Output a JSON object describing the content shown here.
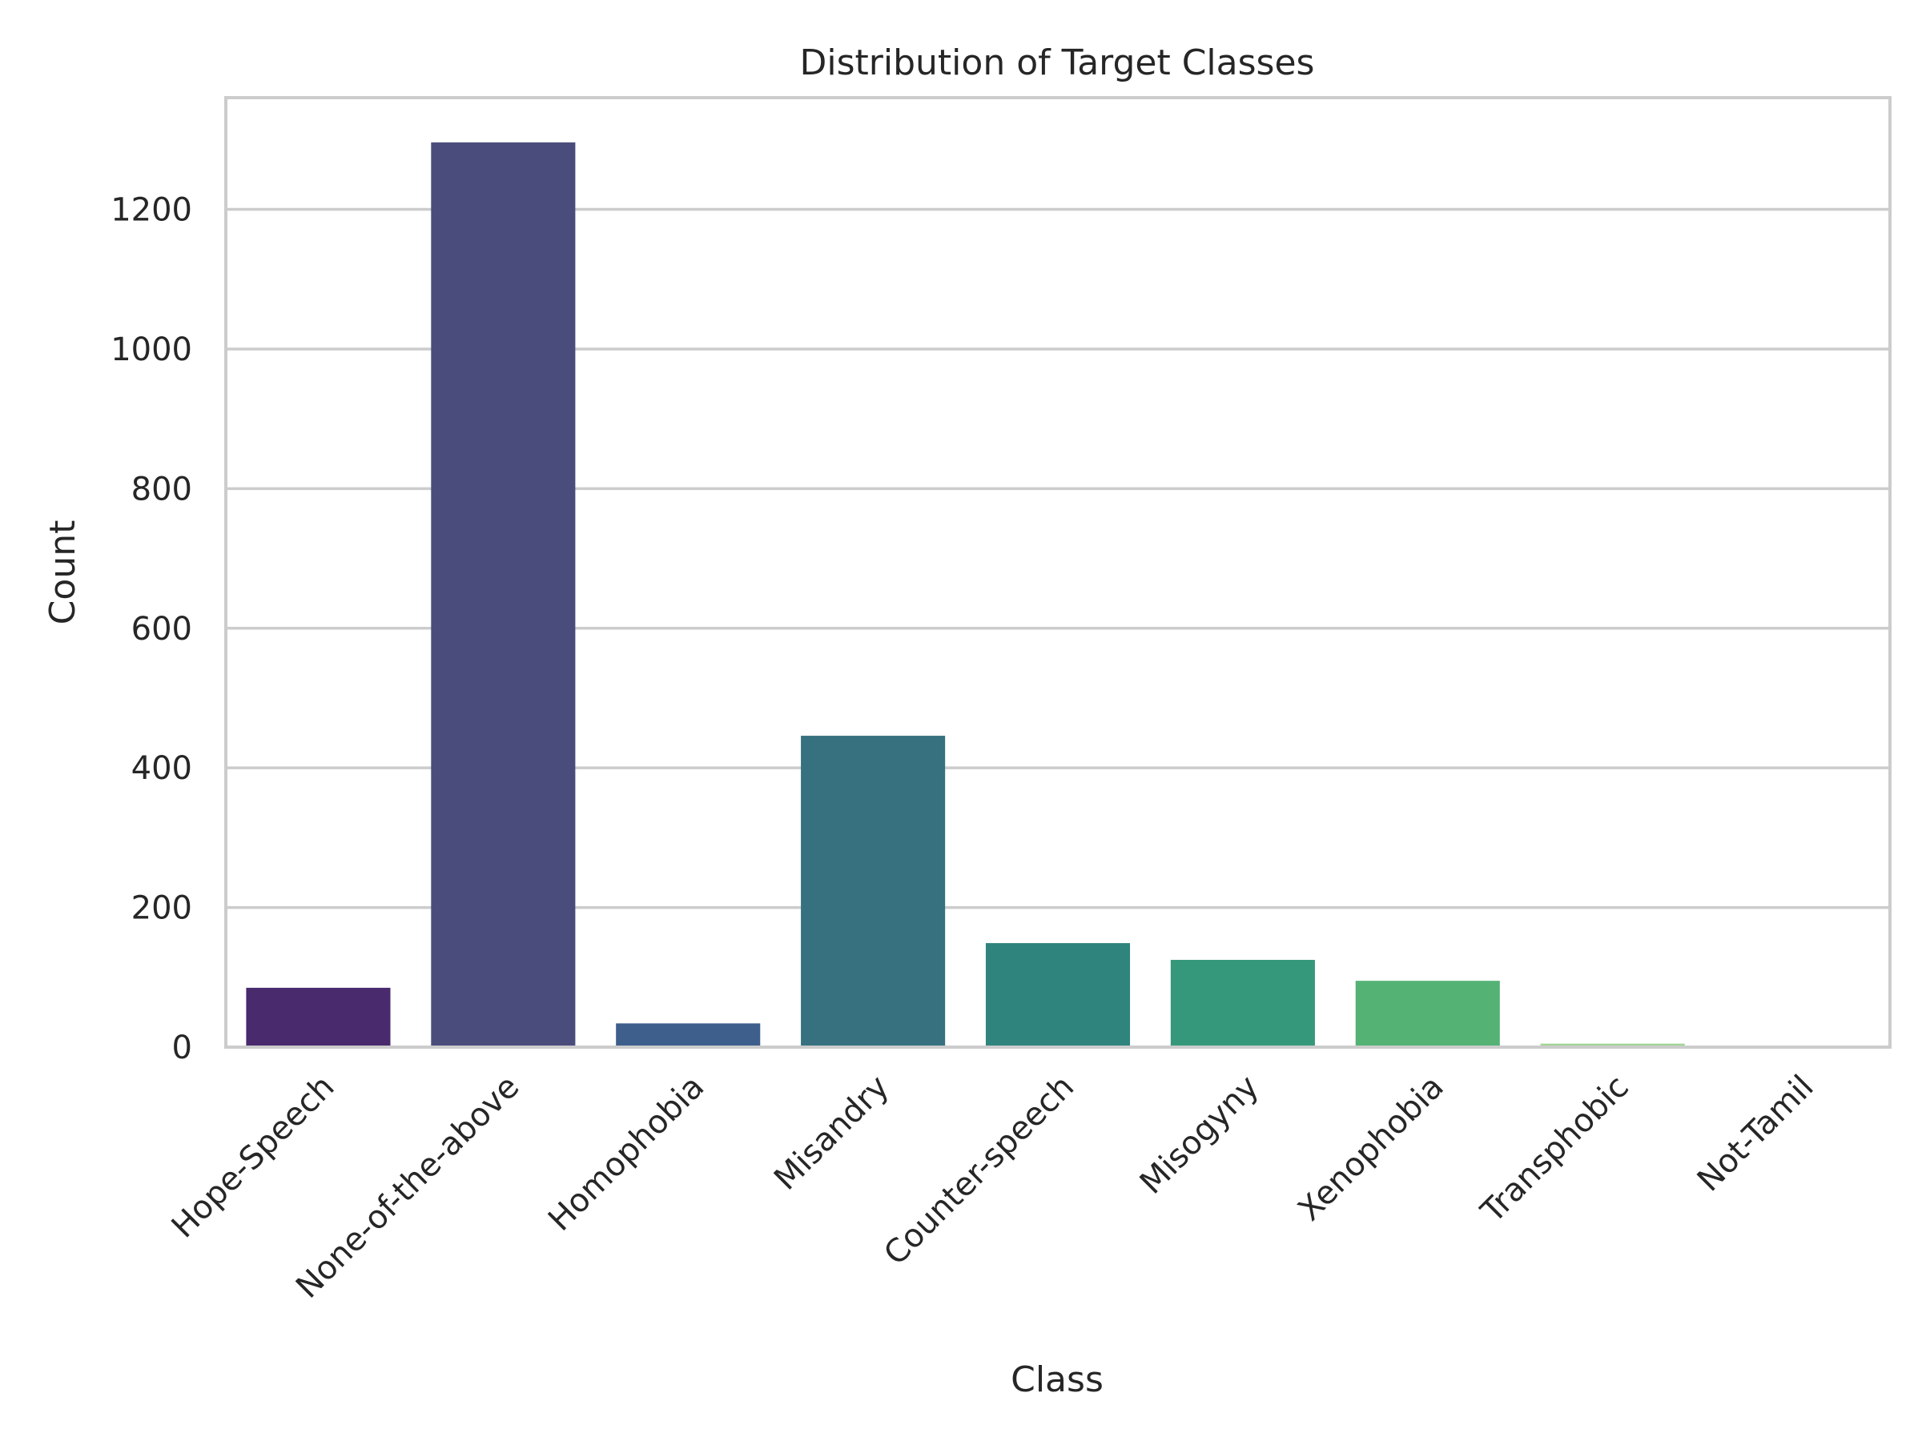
{
  "chart_data": {
    "type": "bar",
    "title": "Distribution of Target Classes",
    "xlabel": "Class",
    "ylabel": "Count",
    "categories": [
      "Hope-Speech",
      "None-of-the-above",
      "Homophobia",
      "Misandry",
      "Counter-speech",
      "Misogyny",
      "Xenophobia",
      "Transphobic",
      "Not-Tamil"
    ],
    "values": [
      85,
      1296,
      34,
      446,
      149,
      125,
      95,
      5,
      2
    ],
    "colors": [
      "#482a6d",
      "#4a4d7c",
      "#3e5f8b",
      "#37717f",
      "#2f847d",
      "#36987a",
      "#54b275",
      "#a2d496",
      "#daf0d3"
    ],
    "ylim": [
      0,
      1360
    ],
    "yticks": [
      0,
      200,
      400,
      600,
      800,
      1000,
      1200
    ],
    "grid": true,
    "legend": "none"
  }
}
